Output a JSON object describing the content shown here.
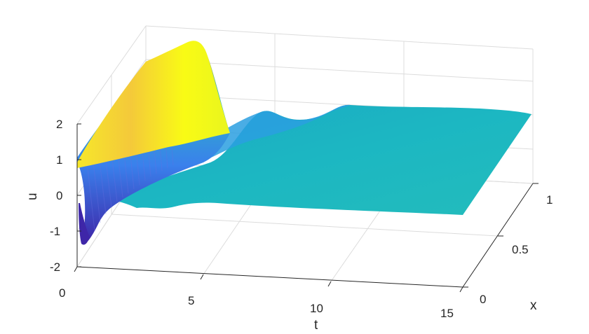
{
  "chart_data": {
    "type": "surface",
    "title": "",
    "xlabel": "t",
    "ylabel": "x",
    "zlabel": "u",
    "xlim": [
      0,
      15
    ],
    "ylim": [
      0,
      1
    ],
    "zlim": [
      -2,
      2
    ],
    "x_ticks": [
      "0",
      "5",
      "10",
      "15"
    ],
    "y_ticks": [
      "0",
      "0.5",
      "1"
    ],
    "z_ticks": [
      "-2",
      "-1",
      "0",
      "1",
      "2"
    ],
    "grid": true,
    "colormap": "parula",
    "colors": {
      "low": "#3e26a8",
      "mid": "#1fb8b7",
      "high": "#f9fb15"
    },
    "surface_features": {
      "initial_peak_u_at_x1": 2.1,
      "initial_trough_u_at_x0": -1.4,
      "transient_end_t": 7,
      "steady_state_u": 0
    }
  }
}
